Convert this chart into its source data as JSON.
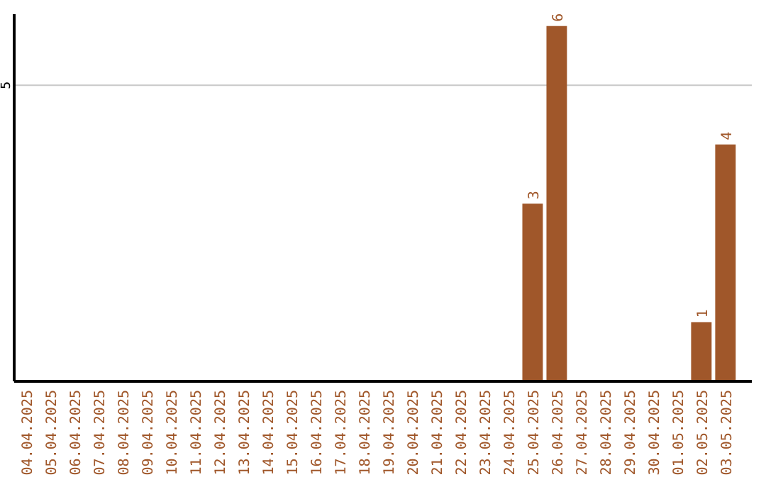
{
  "chart_data": {
    "type": "bar",
    "categories": [
      "04.04.2025",
      "05.04.2025",
      "06.04.2025",
      "07.04.2025",
      "08.04.2025",
      "09.04.2025",
      "10.04.2025",
      "11.04.2025",
      "12.04.2025",
      "13.04.2025",
      "14.04.2025",
      "15.04.2025",
      "16.04.2025",
      "17.04.2025",
      "18.04.2025",
      "19.04.2025",
      "20.04.2025",
      "21.04.2025",
      "22.04.2025",
      "23.04.2025",
      "24.04.2025",
      "25.04.2025",
      "26.04.2025",
      "27.04.2025",
      "28.04.2025",
      "29.04.2025",
      "30.04.2025",
      "01.05.2025",
      "02.05.2025",
      "03.05.2025"
    ],
    "values": [
      null,
      null,
      null,
      null,
      null,
      null,
      null,
      null,
      null,
      null,
      null,
      null,
      null,
      null,
      null,
      null,
      null,
      null,
      null,
      null,
      null,
      3,
      6,
      null,
      null,
      null,
      null,
      null,
      1,
      4
    ],
    "value_labels": [
      null,
      null,
      null,
      null,
      null,
      null,
      null,
      null,
      null,
      null,
      null,
      null,
      null,
      null,
      null,
      null,
      null,
      null,
      null,
      null,
      null,
      "3",
      "6",
      null,
      null,
      null,
      null,
      null,
      "1",
      "4"
    ],
    "color": "#a0572a",
    "ylim": [
      0,
      6.2
    ],
    "yticks": [
      5
    ],
    "grid": "y"
  }
}
